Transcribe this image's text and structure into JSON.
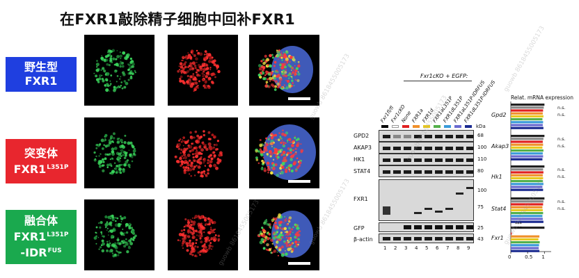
{
  "title": "在FXR1敲除精子细胞中回补FXR1",
  "labels": {
    "wt": {
      "line1": "野生型",
      "line2": "FXR1"
    },
    "mut": {
      "line1": "突变体",
      "line2": "FXR1",
      "sup2": "L351P"
    },
    "fus": {
      "line1": "融合体",
      "line2": "FXR1",
      "sup2": "L351P",
      "line3": "-IDR",
      "sup3": "FUS"
    }
  },
  "colors": {
    "wt": "#1f3fe0",
    "mut": "#e8262e",
    "fus": "#1aa94e"
  },
  "blot": {
    "header_group": "Fxr1cKO + EGFP:",
    "lanes": [
      "Fxr1fl/fl",
      "Fxr1cKO",
      "None",
      "FXR1a",
      "FXR1d",
      "FXR1aL351P",
      "FXR1dL351P",
      "FXR1aL351P-IDRFUS",
      "FXR1dL351P-IDRFUS"
    ],
    "lane_numbers": [
      "1",
      "2",
      "3",
      "4",
      "5",
      "6",
      "7",
      "8",
      "9"
    ],
    "lane_colors": [
      "#000000",
      "#ffffff",
      "#e02020",
      "#f0902a",
      "#e8c820",
      "#54b04a",
      "#3a9bd9",
      "#6a6ad0",
      "#1a2a90"
    ],
    "kda_label": "kDa",
    "rows": [
      {
        "name": "GPD2",
        "kda": "68"
      },
      {
        "name": "AKAP3",
        "kda": "100"
      },
      {
        "name": "HK1",
        "kda": "110"
      },
      {
        "name": "STAT4",
        "kda": "80"
      },
      {
        "name": "FXR1",
        "kda_a": "100",
        "kda_b": "75"
      },
      {
        "name": "GFP",
        "kda": "25"
      },
      {
        "name": "β-actin",
        "kda": "43"
      }
    ]
  },
  "chart_data": {
    "type": "bar",
    "title": "Relat. mRNA expression",
    "xlim": [
      0,
      1.2
    ],
    "xticks": [
      "0",
      "0.5",
      "1"
    ],
    "categories": [
      "Gpd2",
      "Akap3",
      "Hk1",
      "Stat4",
      "Fxr1"
    ],
    "series_colors": [
      "#222222",
      "#888888",
      "#e02020",
      "#f0902a",
      "#e8c820",
      "#54b04a",
      "#3a9bd9",
      "#6a6ad0",
      "#1a2a90"
    ],
    "values": [
      [
        1.0,
        0.98,
        0.96,
        0.95,
        0.97,
        0.94,
        0.96,
        0.95,
        0.97
      ],
      [
        1.0,
        0.97,
        0.95,
        0.96,
        0.94,
        0.97,
        0.95,
        0.96,
        0.94
      ],
      [
        1.0,
        0.96,
        0.97,
        0.95,
        0.96,
        0.95,
        0.97,
        0.94,
        0.96
      ],
      [
        1.0,
        0.97,
        0.96,
        0.94,
        0.95,
        0.96,
        0.94,
        0.95,
        0.97
      ],
      [
        1.0,
        0.02,
        0.03,
        0.85,
        0.82,
        0.86,
        0.84,
        0.83,
        0.85
      ]
    ],
    "annotations": {
      "ns": [
        "n.s.",
        "n.s.",
        "n.s.",
        "n.s."
      ],
      "fxr1_sig": [
        "***",
        "***"
      ]
    }
  },
  "watermark": "guowb 8618455005173"
}
